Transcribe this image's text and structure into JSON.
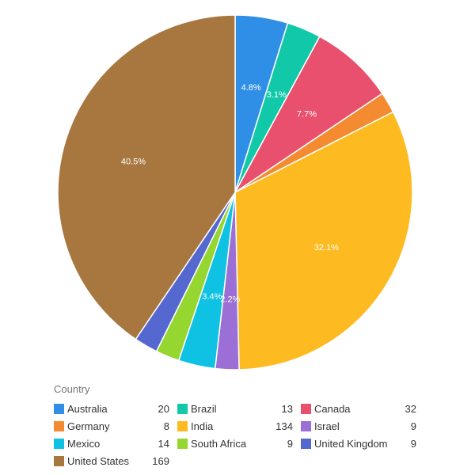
{
  "chart_data": {
    "type": "pie",
    "legend_title": "Country",
    "legend_placement": "bottom",
    "start_angle_deg": 0,
    "direction": "clockwise",
    "slices": [
      {
        "label": "Australia",
        "value": 20,
        "pct_label": "4.8%",
        "color": "#2f8fe6"
      },
      {
        "label": "Brazil",
        "value": 13,
        "pct_label": "3.1%",
        "color": "#11c9a9"
      },
      {
        "label": "Canada",
        "value": 32,
        "pct_label": "7.7%",
        "color": "#e8506e"
      },
      {
        "label": "Germany",
        "value": 8,
        "pct_label": "",
        "color": "#f58b31"
      },
      {
        "label": "India",
        "value": 134,
        "pct_label": "32.1%",
        "color": "#fdbb21"
      },
      {
        "label": "Israel",
        "value": 9,
        "pct_label": "2.2%",
        "color": "#9b6fd6"
      },
      {
        "label": "Mexico",
        "value": 14,
        "pct_label": "3.4%",
        "color": "#0fc2e3"
      },
      {
        "label": "South Africa",
        "value": 9,
        "pct_label": "",
        "color": "#95d630"
      },
      {
        "label": "United Kingdom",
        "value": 9,
        "pct_label": "",
        "color": "#5468cf"
      },
      {
        "label": "United States",
        "value": 169,
        "pct_label": "40.5%",
        "color": "#a8773f"
      }
    ],
    "legend_order": [
      "Australia",
      "Brazil",
      "Canada",
      "Germany",
      "India",
      "Israel",
      "Mexico",
      "South Africa",
      "United Kingdom",
      "United States"
    ]
  }
}
